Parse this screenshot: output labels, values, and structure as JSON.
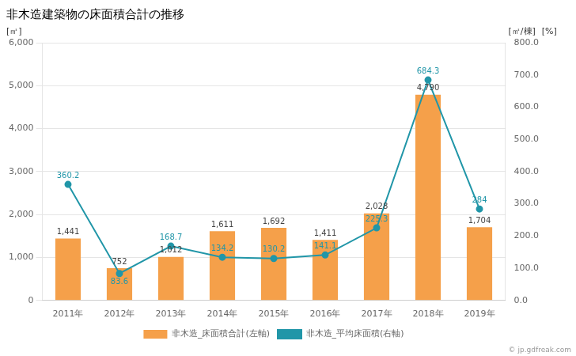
{
  "chart_data": {
    "type": "bar",
    "title": "非木造建築物の床面積合計の推移",
    "categories": [
      "2011年",
      "2012年",
      "2013年",
      "2014年",
      "2015年",
      "2016年",
      "2017年",
      "2018年",
      "2019年"
    ],
    "series": [
      {
        "name": "非木造_床面積合計(左軸)",
        "type": "bar",
        "color": "#f5a04a",
        "values": [
          1441,
          752,
          1012,
          1611,
          1692,
          1411,
          2028,
          4790,
          1704
        ],
        "value_labels": [
          "1,441",
          "752",
          "1,012",
          "1,611",
          "1,692",
          "1,411",
          "2,028",
          "4,790",
          "1,704"
        ]
      },
      {
        "name": "非木造_平均床面積(右軸)",
        "type": "line",
        "color": "#2196a8",
        "axis": "y2",
        "marker": "circle",
        "values": [
          360.2,
          83.6,
          168.7,
          134.2,
          130.2,
          141.1,
          225.3,
          684.3,
          284.0
        ]
      }
    ],
    "ylabel": "[㎡]",
    "y2label": "[㎡/棟]",
    "annotations": [
      "[%]",
      "© jp.gdfreak.com"
    ],
    "ylim": [
      0,
      6000
    ],
    "yticks": [
      0,
      {
        "value": 1000,
        "label": "1,000"
      },
      {
        "value": 2000,
        "label": "2,000"
      },
      {
        "value": 3000,
        "label": "3,000"
      },
      {
        "value": 4000,
        "label": "4,000"
      },
      {
        "value": 5000,
        "label": "5,000"
      },
      {
        "value": 6000,
        "label": "6,000"
      }
    ],
    "y2lim": [
      0,
      800
    ],
    "y2ticks": [
      {
        "value": 0,
        "label": "0.0"
      },
      {
        "value": 100,
        "label": "100.0"
      },
      {
        "value": 200,
        "label": "200.0"
      },
      {
        "value": 300,
        "label": "300.0"
      },
      {
        "value": 400,
        "label": "400.0"
      },
      {
        "value": 500,
        "label": "500.0"
      },
      {
        "value": 600,
        "label": "600.0"
      },
      {
        "value": 700,
        "label": "700.0"
      },
      {
        "value": 800,
        "label": "800.0"
      }
    ],
    "grid": true,
    "legend": "bottom",
    "data_labels": true
  }
}
